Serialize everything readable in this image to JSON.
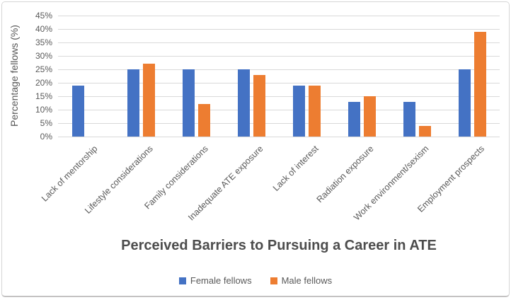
{
  "chart_data": {
    "type": "bar",
    "title": "Perceived Barriers to Pursuing a Career in ATE",
    "ylabel": "Percentage fellows (%)",
    "xlabel": "",
    "categories": [
      "Lack of mentorship",
      "Lifestyle considerations",
      "Family considerations",
      "Inadequate ATE exposure",
      "Lack of interest",
      "Radiation exposure",
      "Work environment/sexism",
      "Employment prospects"
    ],
    "series": [
      {
        "name": "Female fellows",
        "color": "#4472C4",
        "values": [
          19,
          25,
          25,
          25,
          19,
          13,
          13,
          25
        ]
      },
      {
        "name": "Male fellows",
        "color": "#ED7D31",
        "values": [
          0,
          27,
          12,
          23,
          19,
          15,
          4,
          39
        ]
      }
    ],
    "ylim": [
      0,
      45
    ],
    "yticks": [
      0,
      5,
      10,
      15,
      20,
      25,
      30,
      35,
      40,
      45
    ],
    "ytick_labels": [
      "0%",
      "5%",
      "10%",
      "15%",
      "20%",
      "25%",
      "30%",
      "35%",
      "40%",
      "45%"
    ],
    "grid": true,
    "legend_position": "bottom",
    "colors": {
      "gridline": "#D9D9D9",
      "axis_text": "#595959",
      "title_text": "#4D4D4D"
    }
  }
}
